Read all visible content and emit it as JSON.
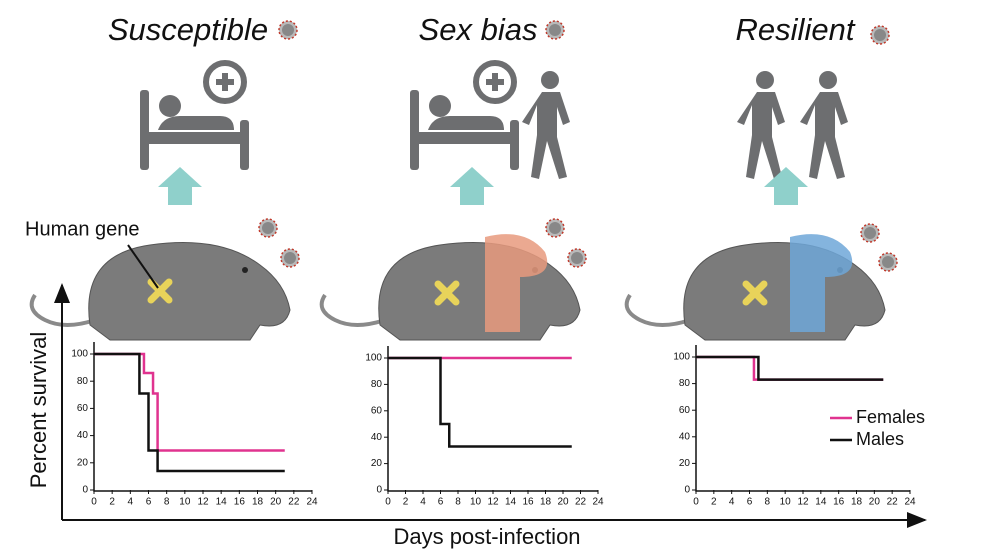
{
  "figure": {
    "annotation": "Human gene",
    "y_label": "Percent survival",
    "x_label": "Days post-infection"
  },
  "chart_data": [
    {
      "type": "step",
      "title": "Susceptible",
      "xlim": [
        0,
        24
      ],
      "xticks": [
        0,
        2,
        4,
        6,
        8,
        10,
        12,
        14,
        16,
        18,
        20,
        22,
        24
      ],
      "ylim": [
        0,
        100
      ],
      "yticks": [
        0,
        20,
        40,
        60,
        80,
        100
      ],
      "series": [
        {
          "color": "#e0338f",
          "x": [
            0,
            5.5,
            6.5,
            7,
            21
          ],
          "values": [
            100,
            86,
            71,
            29,
            29
          ]
        },
        {
          "color": "#111111",
          "x": [
            0,
            5,
            6,
            7,
            21
          ],
          "values": [
            100,
            71,
            29,
            14,
            14
          ]
        }
      ]
    },
    {
      "type": "step",
      "title": "Sex bias",
      "xlim": [
        0,
        24
      ],
      "xticks": [
        0,
        2,
        4,
        6,
        8,
        10,
        12,
        14,
        16,
        18,
        20,
        22,
        24
      ],
      "ylim": [
        0,
        100
      ],
      "yticks": [
        0,
        20,
        40,
        60,
        80,
        100
      ],
      "series": [
        {
          "color": "#e0338f",
          "x": [
            0,
            21
          ],
          "values": [
            100,
            100
          ]
        },
        {
          "color": "#111111",
          "x": [
            0,
            6,
            7,
            21
          ],
          "values": [
            100,
            50,
            33,
            33
          ]
        }
      ]
    },
    {
      "type": "step",
      "title": "Resilient",
      "xlim": [
        0,
        24
      ],
      "xticks": [
        0,
        2,
        4,
        6,
        8,
        10,
        12,
        14,
        16,
        18,
        20,
        22,
        24
      ],
      "ylim": [
        0,
        100
      ],
      "yticks": [
        0,
        20,
        40,
        60,
        80,
        100
      ],
      "legend": "right",
      "series": [
        {
          "name": "Females",
          "color": "#e0338f",
          "x": [
            0,
            6.5,
            21
          ],
          "values": [
            100,
            83,
            83
          ]
        },
        {
          "name": "Males",
          "color": "#111111",
          "x": [
            0,
            7,
            21
          ],
          "values": [
            100,
            83,
            83
          ]
        }
      ]
    }
  ]
}
